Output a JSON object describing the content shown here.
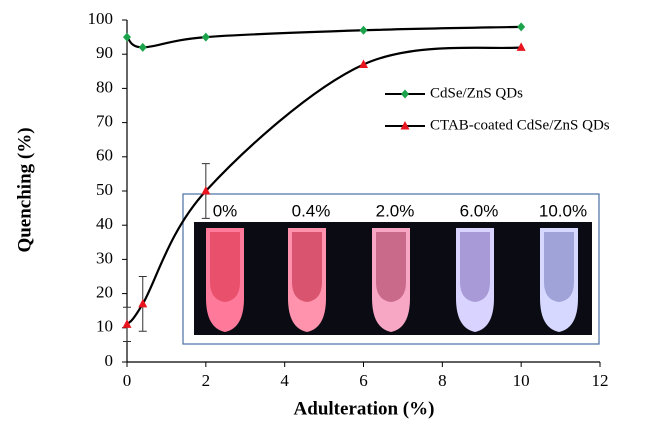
{
  "chart_data": {
    "type": "line",
    "xlabel": "Adulteration (%)",
    "ylabel": "Quenching (%)",
    "xlim": [
      0,
      12
    ],
    "xticks": [
      0,
      2,
      4,
      6,
      8,
      10,
      12
    ],
    "ylim": [
      0,
      100
    ],
    "yticks": [
      0,
      10,
      20,
      30,
      40,
      50,
      60,
      70,
      80,
      90,
      100
    ],
    "series": [
      {
        "name": "CdSe/ZnS QDs",
        "color": "#1aa34a",
        "marker": "diamond",
        "x": [
          0,
          0.4,
          2,
          6,
          10
        ],
        "values": [
          95,
          92,
          95,
          97,
          98
        ]
      },
      {
        "name": "CTAB-coated CdSe/ZnS QDs",
        "color": "#e8141e",
        "marker": "triangle",
        "x": [
          0,
          0.4,
          2,
          6,
          10
        ],
        "values": [
          11,
          17,
          50,
          87,
          92
        ],
        "errors": [
          5,
          8,
          8,
          null,
          null
        ]
      }
    ],
    "inset": {
      "labels": [
        "0%",
        "0.4%",
        "2.0%",
        "6.0%",
        "10.0%"
      ]
    }
  }
}
